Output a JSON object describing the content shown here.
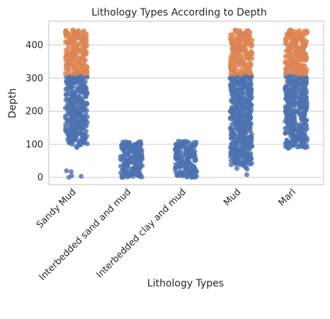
{
  "chart_data": {
    "type": "scatter",
    "subtype": "strip",
    "title": "Lithology Types According to Depth",
    "xlabel": "Lithology Types",
    "ylabel": "Depth",
    "ylim": [
      -22,
      472
    ],
    "yticks": [
      0,
      100,
      200,
      300,
      400
    ],
    "grid": "horizontal",
    "categories": [
      "Sandy Mud",
      "Interbedded sand and mud",
      "Interbedded clay and mud",
      "Mud",
      "Marl"
    ],
    "colors": {
      "lower": "#4c72b0",
      "upper": "#dd8452"
    },
    "strips": [
      {
        "category": "Sandy Mud",
        "lower": {
          "dense_ranges": [
            [
              100,
              312
            ]
          ],
          "sparse_points": [
            90,
            94,
            98,
            3,
            5,
            17,
            20,
            0
          ]
        },
        "upper": {
          "dense_ranges": [
            [
              312,
              445
            ]
          ]
        }
      },
      {
        "category": "Interbedded sand and mud",
        "lower": {
          "dense_ranges": [
            [
              0,
              108
            ]
          ],
          "sparse_points": []
        },
        "upper": {
          "dense_ranges": []
        }
      },
      {
        "category": "Interbedded clay and mud",
        "lower": {
          "dense_ranges": [
            [
              0,
              110
            ]
          ],
          "sparse_points": []
        },
        "upper": {
          "dense_ranges": []
        }
      },
      {
        "category": "Mud",
        "lower": {
          "dense_ranges": [
            [
              38,
              312
            ]
          ],
          "sparse_points": [
            75,
            30,
            27,
            25,
            34,
            8
          ]
        },
        "upper": {
          "dense_ranges": [
            [
              312,
              445
            ]
          ]
        }
      },
      {
        "category": "Marl",
        "lower": {
          "dense_ranges": [
            [
              90,
              312
            ]
          ],
          "sparse_points": [
            88
          ]
        },
        "upper": {
          "dense_ranges": [
            [
              312,
              445
            ]
          ]
        }
      }
    ]
  }
}
